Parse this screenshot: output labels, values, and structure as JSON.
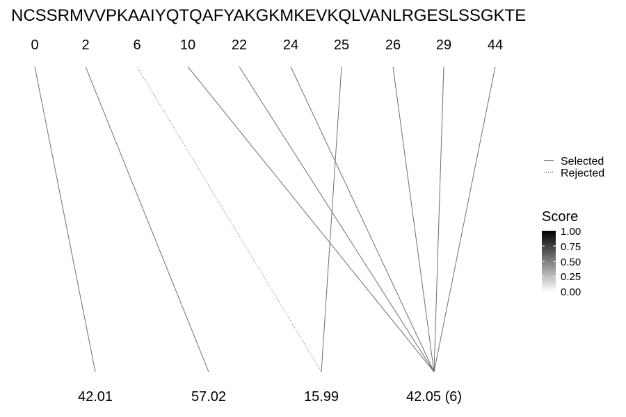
{
  "sequence": "NCSSRMVVPKAAIYQTQAFYAKGKMKEVKQLVANLRGESLSSGKTE",
  "positions": [
    "0",
    "2",
    "6",
    "10",
    "22",
    "24",
    "25",
    "26",
    "29",
    "44"
  ],
  "masses": [
    "42.01",
    "57.02",
    "15.99",
    "42.05 (6)"
  ],
  "links": [
    {
      "from": 0,
      "to": 0,
      "status": "selected"
    },
    {
      "from": 1,
      "to": 1,
      "status": "selected"
    },
    {
      "from": 2,
      "to": 2,
      "status": "rejected"
    },
    {
      "from": 3,
      "to": 3,
      "status": "selected"
    },
    {
      "from": 4,
      "to": 3,
      "status": "selected"
    },
    {
      "from": 5,
      "to": 3,
      "status": "selected"
    },
    {
      "from": 6,
      "to": 2,
      "status": "selected"
    },
    {
      "from": 7,
      "to": 3,
      "status": "selected"
    },
    {
      "from": 8,
      "to": 3,
      "status": "selected"
    },
    {
      "from": 9,
      "to": 3,
      "status": "selected"
    }
  ],
  "legend": {
    "selected_label": "Selected",
    "rejected_label": "Rejected"
  },
  "score_scale": {
    "title": "Score",
    "ticks": [
      "1.00",
      "0.75",
      "0.50",
      "0.25",
      "0.00"
    ],
    "color_high": "#000000",
    "color_low": "#ffffff"
  },
  "colors": {
    "line": "#6e6e6e",
    "text": "#000000"
  }
}
